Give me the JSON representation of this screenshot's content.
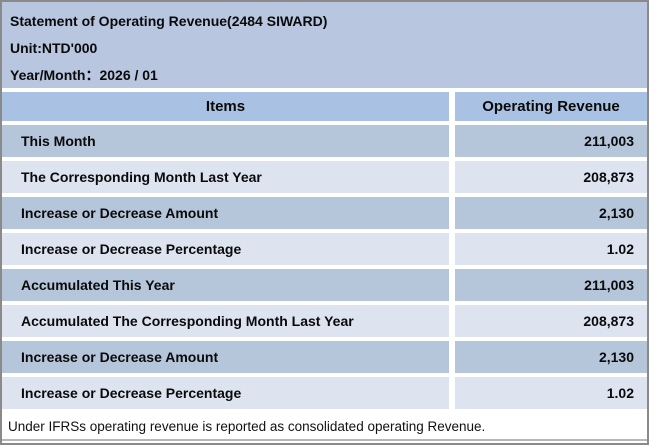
{
  "banner": {
    "title": "Statement of Operating Revenue(2484 SIWARD)",
    "unit": "Unit:NTD'000",
    "year_month": "Year/Month：2026 / 01"
  },
  "table": {
    "columns": [
      "Items",
      "Operating Revenue"
    ],
    "rows": [
      {
        "item": "This Month",
        "value": "211,003"
      },
      {
        "item": "The Corresponding Month Last Year",
        "value": "208,873"
      },
      {
        "item": "Increase or Decrease Amount",
        "value": "2,130"
      },
      {
        "item": "Increase or Decrease Percentage",
        "value": "1.02"
      },
      {
        "item": "Accumulated This Year",
        "value": "211,003"
      },
      {
        "item": "Accumulated The Corresponding Month Last Year",
        "value": "208,873"
      },
      {
        "item": "Increase or Decrease Amount",
        "value": "2,130"
      },
      {
        "item": "Increase or Decrease Percentage",
        "value": "1.02"
      }
    ]
  },
  "footer": {
    "note": "Under IFRSs operating revenue is reported as consolidated operating Revenue."
  },
  "colors": {
    "banner_bg": "#b8c6e0",
    "header_row_bg": "#a9c2e4",
    "row_dark_bg": "#b5c5da",
    "row_light_bg": "#dde4ef",
    "border": "#8a8a8a"
  }
}
